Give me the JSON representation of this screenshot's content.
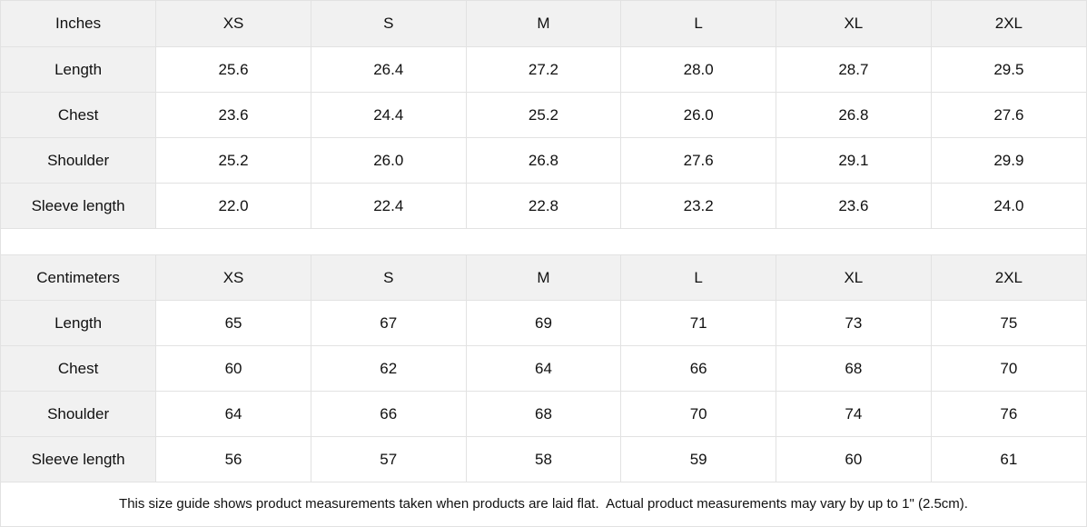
{
  "tables": [
    {
      "unit_label": "Inches",
      "sizes": [
        "XS",
        "S",
        "M",
        "L",
        "XL",
        "2XL"
      ],
      "rows": [
        {
          "label": "Length",
          "values": [
            "25.6",
            "26.4",
            "27.2",
            "28.0",
            "28.7",
            "29.5"
          ]
        },
        {
          "label": "Chest",
          "values": [
            "23.6",
            "24.4",
            "25.2",
            "26.0",
            "26.8",
            "27.6"
          ]
        },
        {
          "label": "Shoulder",
          "values": [
            "25.2",
            "26.0",
            "26.8",
            "27.6",
            "29.1",
            "29.9"
          ]
        },
        {
          "label": "Sleeve length",
          "values": [
            "22.0",
            "22.4",
            "22.8",
            "23.2",
            "23.6",
            "24.0"
          ]
        }
      ]
    },
    {
      "unit_label": "Centimeters",
      "sizes": [
        "XS",
        "S",
        "M",
        "L",
        "XL",
        "2XL"
      ],
      "rows": [
        {
          "label": "Length",
          "values": [
            "65",
            "67",
            "69",
            "71",
            "73",
            "75"
          ]
        },
        {
          "label": "Chest",
          "values": [
            "60",
            "62",
            "64",
            "66",
            "68",
            "70"
          ]
        },
        {
          "label": "Shoulder",
          "values": [
            "64",
            "66",
            "68",
            "70",
            "74",
            "76"
          ]
        },
        {
          "label": "Sleeve length",
          "values": [
            "56",
            "57",
            "58",
            "59",
            "60",
            "61"
          ]
        }
      ]
    }
  ],
  "footer": {
    "note": "This size guide shows product measurements taken when products are laid flat.  Actual product measurements may vary by up to 1\" (2.5cm)."
  },
  "colors": {
    "header_bg": "#f1f1f1",
    "cell_bg": "#ffffff",
    "border": "#e2e2e2",
    "text": "#111111"
  }
}
